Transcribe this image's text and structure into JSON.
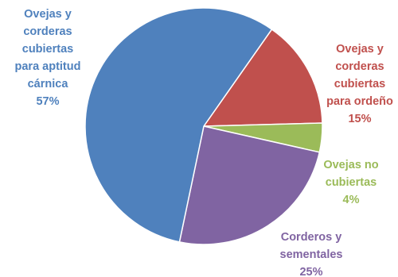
{
  "chart_data": {
    "type": "pie",
    "title": "",
    "slices": [
      {
        "label": [
          "Ovejas y",
          "corderas",
          "cubiertas",
          "para ordeño"
        ],
        "percent_label": "15%",
        "value": 15,
        "color": "#c0504d"
      },
      {
        "label": [
          "Ovejas no",
          "cubiertas"
        ],
        "percent_label": "4%",
        "value": 4,
        "color": "#9bbb59"
      },
      {
        "label": [
          "Corderos y",
          "sementales"
        ],
        "percent_label": "25%",
        "value": 25,
        "color": "#8064a2"
      },
      {
        "label": [
          "Ovejas y",
          "corderas",
          "cubiertas",
          "para aptitud",
          "cárnica"
        ],
        "percent_label": "57%",
        "value": 57,
        "color": "#4f81bd"
      }
    ],
    "start_angle_deg": 35,
    "direction": "clockwise",
    "legend": "none"
  }
}
